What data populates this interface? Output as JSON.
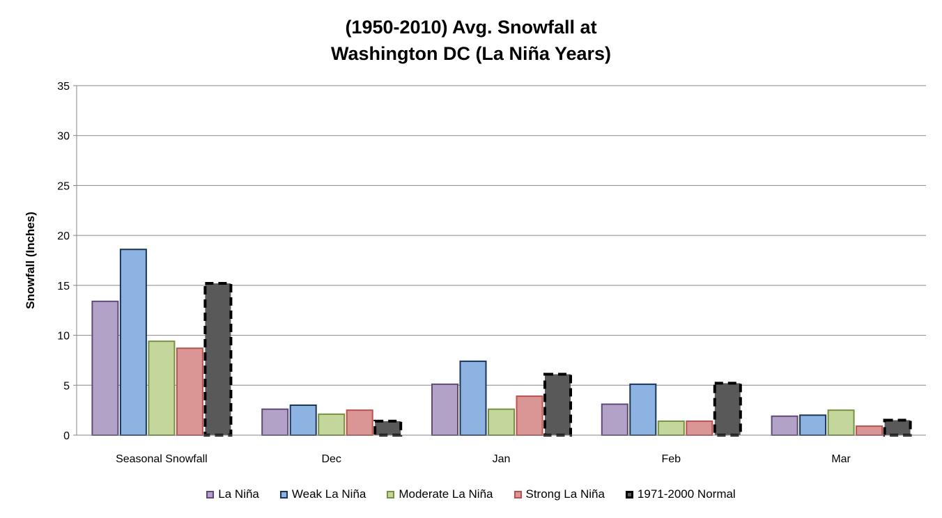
{
  "chart_data": {
    "type": "bar",
    "title_lines": [
      "(1950-2010) Avg. Snowfall at",
      "Washington DC (La Niña Years)"
    ],
    "xlabel": "",
    "ylabel": "Snowfall (Inches)",
    "ylim": [
      0,
      35
    ],
    "yticks": [
      0,
      5,
      10,
      15,
      20,
      25,
      30,
      35
    ],
    "grid": true,
    "legend_position": "bottom",
    "categories": [
      "Seasonal Snowfall",
      "Dec",
      "Jan",
      "Feb",
      "Mar"
    ],
    "series": [
      {
        "name": "La Niña",
        "fill": "#b3a2c7",
        "stroke": "#5f497a",
        "dashed": false,
        "values": [
          13.4,
          2.6,
          5.1,
          3.1,
          1.9
        ]
      },
      {
        "name": "Weak La Niña",
        "fill": "#8db3e2",
        "stroke": "#17365d",
        "dashed": false,
        "values": [
          18.6,
          3.0,
          7.4,
          5.1,
          2.0
        ]
      },
      {
        "name": "Moderate La Niña",
        "fill": "#c3d69b",
        "stroke": "#77933c",
        "dashed": false,
        "values": [
          9.4,
          2.1,
          2.6,
          1.4,
          2.5
        ]
      },
      {
        "name": "Strong La Niña",
        "fill": "#d99694",
        "stroke": "#c0504d",
        "dashed": false,
        "values": [
          8.7,
          2.5,
          3.9,
          1.4,
          0.9
        ]
      },
      {
        "name": "1971-2000 Normal",
        "fill": "#595959",
        "stroke": "#000000",
        "dashed": true,
        "values": [
          15.2,
          1.4,
          6.1,
          5.2,
          1.5
        ]
      }
    ]
  }
}
